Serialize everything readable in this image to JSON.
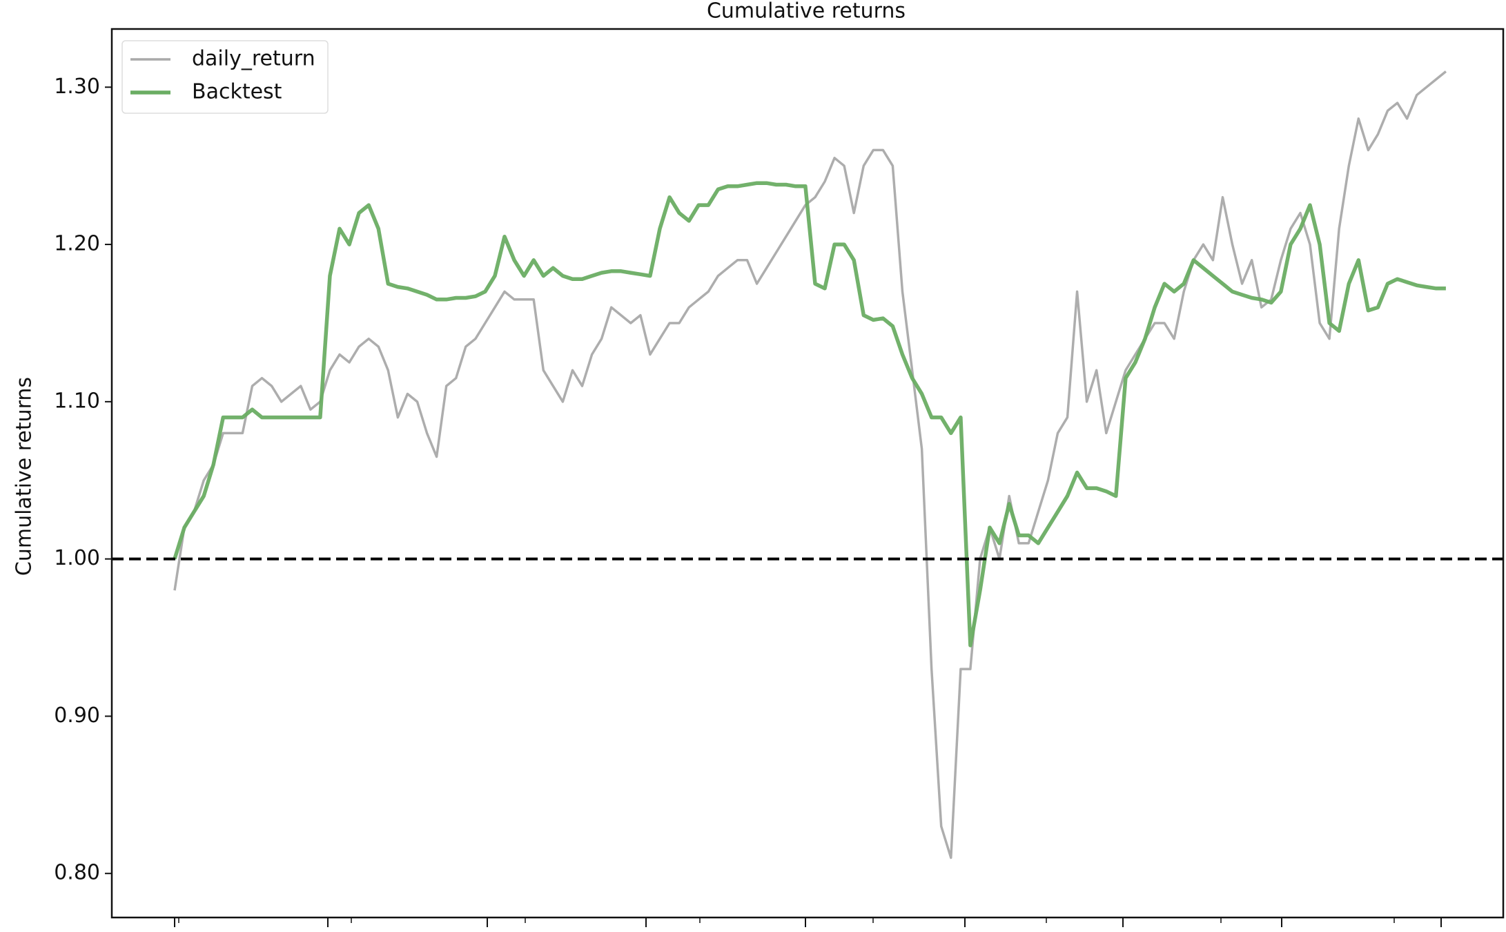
{
  "chart_data": {
    "type": "line",
    "title": "Cumulative returns",
    "y_label": "Cumulative returns",
    "ylim": [
      0.772,
      1.337
    ],
    "yticks": [
      {
        "value": 0.8,
        "label": "0.80"
      },
      {
        "value": 0.9,
        "label": "0.90"
      },
      {
        "value": 1.0,
        "label": "1.00"
      },
      {
        "value": 1.1,
        "label": "1.10"
      },
      {
        "value": 1.2,
        "label": "1.20"
      },
      {
        "value": 1.3,
        "label": "1.30"
      }
    ],
    "hline": 1.0,
    "legend": "upper left",
    "series": [
      {
        "name": "daily_return",
        "color": "#a9a9a9",
        "values": [
          0.98,
          1.02,
          1.03,
          1.05,
          1.06,
          1.08,
          1.08,
          1.08,
          1.11,
          1.115,
          1.11,
          1.1,
          1.105,
          1.11,
          1.095,
          1.1,
          1.12,
          1.13,
          1.125,
          1.135,
          1.14,
          1.135,
          1.12,
          1.09,
          1.105,
          1.1,
          1.08,
          1.065,
          1.11,
          1.115,
          1.135,
          1.14,
          1.15,
          1.16,
          1.17,
          1.165,
          1.165,
          1.165,
          1.12,
          1.11,
          1.1,
          1.12,
          1.11,
          1.13,
          1.14,
          1.16,
          1.155,
          1.15,
          1.155,
          1.13,
          1.14,
          1.15,
          1.15,
          1.16,
          1.165,
          1.17,
          1.18,
          1.185,
          1.19,
          1.19,
          1.175,
          1.185,
          1.195,
          1.205,
          1.215,
          1.225,
          1.23,
          1.24,
          1.255,
          1.25,
          1.22,
          1.25,
          1.26,
          1.26,
          1.25,
          1.17,
          1.12,
          1.07,
          0.93,
          0.83,
          0.81,
          0.93,
          0.93,
          1.0,
          1.02,
          1.0,
          1.04,
          1.01,
          1.01,
          1.03,
          1.05,
          1.08,
          1.09,
          1.17,
          1.1,
          1.12,
          1.08,
          1.1,
          1.12,
          1.13,
          1.14,
          1.15,
          1.15,
          1.14,
          1.17,
          1.19,
          1.2,
          1.19,
          1.23,
          1.2,
          1.175,
          1.19,
          1.16,
          1.165,
          1.19,
          1.21,
          1.22,
          1.2,
          1.15,
          1.14,
          1.21,
          1.25,
          1.28,
          1.26,
          1.27,
          1.285,
          1.29,
          1.28,
          1.295,
          1.3,
          1.305,
          1.31
        ]
      },
      {
        "name": "Backtest",
        "color": "#6aad63",
        "values": [
          1.0,
          1.02,
          1.03,
          1.04,
          1.06,
          1.09,
          1.09,
          1.09,
          1.095,
          1.09,
          1.09,
          1.09,
          1.09,
          1.09,
          1.09,
          1.09,
          1.18,
          1.21,
          1.2,
          1.22,
          1.225,
          1.21,
          1.175,
          1.173,
          1.172,
          1.17,
          1.168,
          1.165,
          1.165,
          1.166,
          1.166,
          1.167,
          1.17,
          1.18,
          1.205,
          1.19,
          1.18,
          1.19,
          1.18,
          1.185,
          1.18,
          1.178,
          1.178,
          1.18,
          1.182,
          1.183,
          1.183,
          1.182,
          1.181,
          1.18,
          1.21,
          1.23,
          1.22,
          1.215,
          1.225,
          1.225,
          1.235,
          1.237,
          1.237,
          1.238,
          1.239,
          1.239,
          1.238,
          1.238,
          1.237,
          1.237,
          1.175,
          1.172,
          1.2,
          1.2,
          1.19,
          1.155,
          1.152,
          1.153,
          1.148,
          1.13,
          1.115,
          1.105,
          1.09,
          1.09,
          1.08,
          1.09,
          0.945,
          0.98,
          1.02,
          1.01,
          1.035,
          1.015,
          1.015,
          1.01,
          1.02,
          1.03,
          1.04,
          1.055,
          1.045,
          1.045,
          1.043,
          1.04,
          1.115,
          1.125,
          1.14,
          1.16,
          1.175,
          1.17,
          1.175,
          1.19,
          1.185,
          1.18,
          1.175,
          1.17,
          1.168,
          1.166,
          1.165,
          1.163,
          1.17,
          1.2,
          1.21,
          1.225,
          1.2,
          1.15,
          1.145,
          1.175,
          1.19,
          1.158,
          1.16,
          1.175,
          1.178,
          1.176,
          1.174,
          1.173,
          1.172,
          1.172
        ]
      }
    ]
  }
}
